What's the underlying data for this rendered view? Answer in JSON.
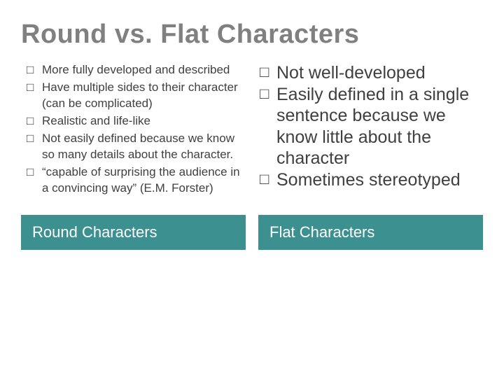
{
  "title": "Round vs. Flat Characters",
  "colors": {
    "title_color": "#808080",
    "body_text_color": "#404040",
    "bar_background": "#3c9090",
    "bar_text": "#ffffff",
    "slide_background": "#ffffff"
  },
  "typography": {
    "title_fontsize": 38,
    "left_body_fontsize": 17,
    "right_body_fontsize": 25,
    "bar_fontsize": 22,
    "font_family": "Trebuchet MS"
  },
  "left": {
    "bullet_glyph": "□",
    "items": [
      "More fully developed and described",
      "Have multiple sides to their character (can be complicated)",
      "Realistic and life-like",
      "Not easily defined because we know so many details about the character.",
      "“capable of surprising the audience in a convincing way” (E.M. Forster)"
    ]
  },
  "right": {
    "bullet_glyph": "□",
    "items": [
      "Not well-developed",
      "Easily defined in a single sentence because we know little about the character",
      "Sometimes stereotyped"
    ]
  },
  "footer": {
    "left_label": "Round Characters",
    "right_label": "Flat Characters"
  }
}
